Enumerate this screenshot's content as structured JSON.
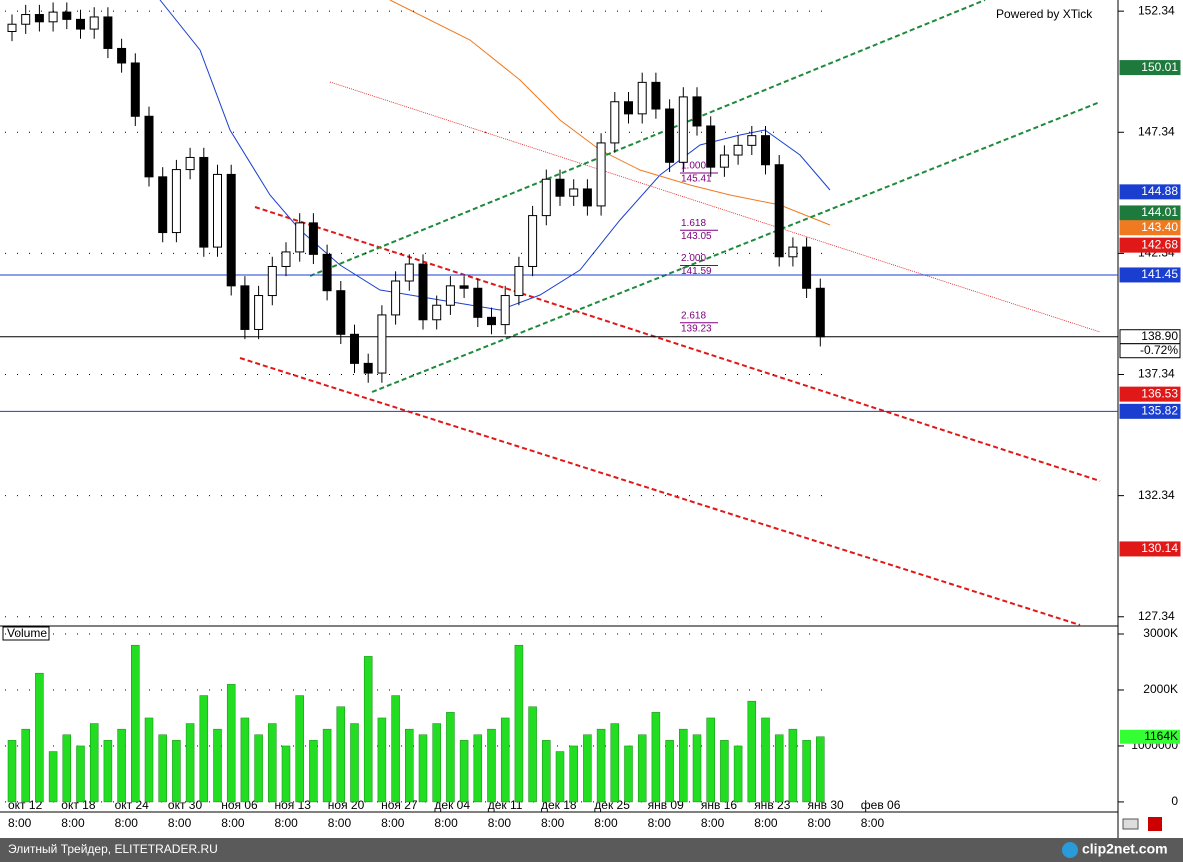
{
  "chart_data": [
    {
      "type": "candlestick",
      "powered": "Powered by XTick",
      "open": [
        151.5,
        151.8,
        152.2,
        151.9,
        152.3,
        152.0,
        151.6,
        152.1,
        150.8,
        150.2,
        148.0,
        145.5,
        143.2,
        145.8,
        146.3,
        142.6,
        145.6,
        141.0,
        139.2,
        140.6,
        141.8,
        142.4,
        143.6,
        142.3,
        140.8,
        139.0,
        137.8,
        137.4,
        139.8,
        141.2,
        141.9,
        139.6,
        140.2,
        141.0,
        140.9,
        139.7,
        139.4,
        140.6,
        141.8,
        143.9,
        145.4,
        144.7,
        145.0,
        144.3,
        146.9,
        148.6,
        148.1,
        149.4,
        148.3,
        146.1,
        148.8,
        147.6,
        145.9,
        146.4,
        146.8,
        147.2,
        146.0,
        142.2,
        142.6,
        140.9
      ],
      "high": [
        152.2,
        152.6,
        152.6,
        152.7,
        152.7,
        152.4,
        152.5,
        152.5,
        151.2,
        150.6,
        148.4,
        145.9,
        146.2,
        146.7,
        146.7,
        146.0,
        146.0,
        141.4,
        141.0,
        142.2,
        142.8,
        144.0,
        144.0,
        142.7,
        141.2,
        139.4,
        138.2,
        140.2,
        141.6,
        142.3,
        142.3,
        140.6,
        141.4,
        141.4,
        141.3,
        140.1,
        141.0,
        142.2,
        144.3,
        145.8,
        145.8,
        145.4,
        145.4,
        147.3,
        149.0,
        149.0,
        149.8,
        149.8,
        148.7,
        149.2,
        149.2,
        148.0,
        146.8,
        147.2,
        147.6,
        147.6,
        146.4,
        143.0,
        143.0,
        141.3
      ],
      "low": [
        151.1,
        151.4,
        151.5,
        151.5,
        151.6,
        151.2,
        151.2,
        150.4,
        149.8,
        147.6,
        145.1,
        142.8,
        142.8,
        145.4,
        142.2,
        142.2,
        140.6,
        138.8,
        138.8,
        140.2,
        141.4,
        142.0,
        141.9,
        140.4,
        138.6,
        137.4,
        137.0,
        137.0,
        139.4,
        140.8,
        139.2,
        139.2,
        139.8,
        140.5,
        139.3,
        139.0,
        139.0,
        140.2,
        141.4,
        143.5,
        144.3,
        144.3,
        143.9,
        143.9,
        146.5,
        147.7,
        147.7,
        147.9,
        145.7,
        145.7,
        147.2,
        145.5,
        145.5,
        146.0,
        146.4,
        145.6,
        141.8,
        141.8,
        140.5,
        138.5
      ],
      "close": [
        151.8,
        152.2,
        151.9,
        152.3,
        152.0,
        151.6,
        152.1,
        150.8,
        150.2,
        148.0,
        145.5,
        143.2,
        145.8,
        146.3,
        142.6,
        145.6,
        141.0,
        139.2,
        140.6,
        141.8,
        142.4,
        143.6,
        142.3,
        140.8,
        139.0,
        137.8,
        137.4,
        139.8,
        141.2,
        141.9,
        139.6,
        140.2,
        141.0,
        140.9,
        139.7,
        139.4,
        140.6,
        141.8,
        143.9,
        145.4,
        144.7,
        145.0,
        144.3,
        146.9,
        148.6,
        148.1,
        149.4,
        148.3,
        146.1,
        148.8,
        147.6,
        145.9,
        146.4,
        146.8,
        147.2,
        146.0,
        142.2,
        142.6,
        140.9,
        138.9
      ],
      "up_color": "#ffffff",
      "down_color": "#000000",
      "ylim": [
        127.0,
        152.8
      ],
      "yticks": [
        127.34,
        132.34,
        137.34,
        142.34,
        147.34,
        152.34
      ],
      "grid": true,
      "x_labels": [
        "окт 12",
        "окт 18",
        "окт 24",
        "окт 30",
        "ноя 06",
        "ноя 13",
        "ноя 20",
        "ноя 27",
        "дек 04",
        "дек 11",
        "дек 18",
        "дек 25",
        "янв 09",
        "янв 16",
        "янв 23",
        "янв 30",
        "фев 06"
      ],
      "x_time": "8:00",
      "price_markers": [
        {
          "value": 150.01,
          "color": "#1e7a3c"
        },
        {
          "value": 144.88,
          "color": "#1a3fd0"
        },
        {
          "value": 144.01,
          "color": "#1e7a3c"
        },
        {
          "value": 143.4,
          "label": "143.40",
          "color": "#f07a20"
        },
        {
          "value": 142.68,
          "color": "#e01818"
        },
        {
          "value": 141.45,
          "color": "#1a3fd0",
          "line": true
        },
        {
          "value": 138.9,
          "label": "138.90",
          "color": "#000000",
          "line": true
        },
        {
          "value": 136.53,
          "color": "#e01818"
        },
        {
          "value": 135.82,
          "color": "#1a3fd0",
          "line": true
        },
        {
          "value": 130.14,
          "color": "#e01818"
        }
      ],
      "change_label": "-0.72%",
      "fib_levels": [
        {
          "level": "1.000",
          "price": 145.41
        },
        {
          "level": "1.618",
          "price": 143.05
        },
        {
          "level": "2.000",
          "price": 141.59
        },
        {
          "level": "2.618",
          "price": 139.23
        }
      ]
    },
    {
      "type": "bar",
      "title": "Volume",
      "values": [
        1100000,
        1300000,
        2300000,
        900000,
        1200000,
        1000000,
        1400000,
        1100000,
        1300000,
        2800000,
        1500000,
        1200000,
        1100000,
        1400000,
        1900000,
        1300000,
        2100000,
        1500000,
        1200000,
        1400000,
        1000000,
        1900000,
        1100000,
        1300000,
        1700000,
        1400000,
        2600000,
        1500000,
        1900000,
        1300000,
        1200000,
        1400000,
        1600000,
        1100000,
        1200000,
        1300000,
        1500000,
        2800000,
        1700000,
        1100000,
        900000,
        1000000,
        1200000,
        1300000,
        1400000,
        1000000,
        1200000,
        1600000,
        1100000,
        1300000,
        1200000,
        1500000,
        1100000,
        1000000,
        1800000,
        1500000,
        1200000,
        1300000,
        1100000,
        1164000
      ],
      "color": "#22dd22",
      "ylim": [
        -180000,
        3125000
      ],
      "yticks": [
        0,
        {
          "value": 1000000,
          "label": "1000000"
        },
        {
          "value": 2000000,
          "label": "2000K"
        },
        {
          "value": 3000000,
          "label": "3000K"
        }
      ],
      "last_marker": {
        "value": 1164000,
        "label": "1164K",
        "color": "#33ff33"
      }
    }
  ],
  "status_bar": {
    "left": "Элитный Трейдер, ELITETRADER.RU",
    "logo": "clip2net.com"
  }
}
